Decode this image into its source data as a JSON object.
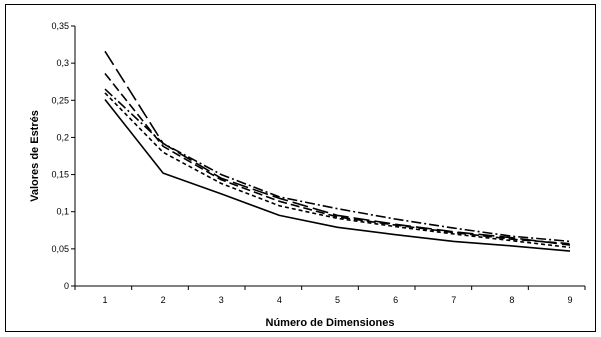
{
  "chart_data": {
    "type": "line",
    "xlabel": "Número de Dimensiones",
    "ylabel": "Valores de Estrés",
    "x": [
      1,
      2,
      3,
      4,
      5,
      6,
      7,
      8,
      9
    ],
    "x_tick_labels": [
      "1",
      "2",
      "3",
      "4",
      "5",
      "6",
      "7",
      "8",
      "9"
    ],
    "ylim": [
      0,
      0.35
    ],
    "y_tick_labels": [
      "0",
      "0,05",
      "0,1",
      "0,15",
      "0,2",
      "0,25",
      "0,3",
      "0,35"
    ],
    "grid": false,
    "legend": "none",
    "series": [
      {
        "style": "solid",
        "color": "#000000",
        "values": [
          0.251,
          0.152,
          0.124,
          0.095,
          0.079,
          0.069,
          0.06,
          0.054,
          0.047
        ]
      },
      {
        "style": "long-dash",
        "color": "#000000",
        "values": [
          0.316,
          0.192,
          0.145,
          0.118,
          0.095,
          0.083,
          0.073,
          0.065,
          0.055
        ]
      },
      {
        "style": "dash",
        "color": "#000000",
        "values": [
          0.286,
          0.188,
          0.143,
          0.114,
          0.093,
          0.082,
          0.072,
          0.063,
          0.057
        ]
      },
      {
        "style": "dash-dot",
        "color": "#000000",
        "values": [
          0.265,
          0.192,
          0.15,
          0.12,
          0.104,
          0.09,
          0.078,
          0.067,
          0.06
        ]
      },
      {
        "style": "short-dash",
        "color": "#000000",
        "values": [
          0.26,
          0.18,
          0.138,
          0.108,
          0.091,
          0.08,
          0.07,
          0.061,
          0.052
        ]
      }
    ]
  }
}
